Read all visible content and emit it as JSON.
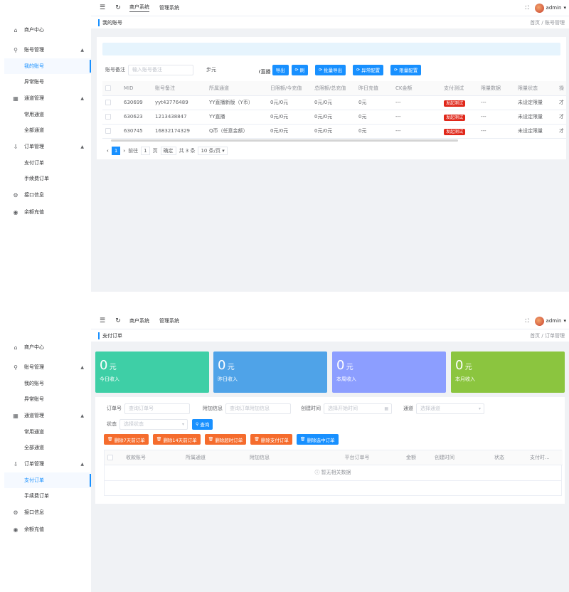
{
  "header": {
    "nav": [
      "商户系统",
      "管理系统"
    ],
    "user": "admin"
  },
  "sidebar": {
    "menu": [
      {
        "label": "商户中心",
        "icon": "home-icon"
      },
      {
        "label": "账号管理",
        "icon": "user-icon",
        "children": [
          "我的账号",
          "异常账号"
        ]
      },
      {
        "label": "通道管理",
        "icon": "grid-icon",
        "children": [
          "常用通道",
          "全部通道"
        ]
      },
      {
        "label": "订单管理",
        "icon": "order-icon",
        "children": [
          "支付订单",
          "手续费订单"
        ]
      },
      {
        "label": "接口信息",
        "icon": "gear-icon"
      },
      {
        "label": "余额充值",
        "icon": "coin-icon"
      }
    ]
  },
  "page1": {
    "crumb_title": "我的账号",
    "crumb_path": "首页 / 账号管理",
    "filter": {
      "remark_label": "账号备注",
      "remark_placeholder": "输入账号备注",
      "channel_value": "步元",
      "channel_value2": "YY直播"
    },
    "buttons": [
      "导出",
      "刷",
      "批量导出",
      "异常配置",
      "限量配置"
    ],
    "table": {
      "columns": [
        "MID",
        "账号备注",
        "所属通道",
        "日限额/今充值",
        "总限额/总充值",
        "昨日充值",
        "CK金额",
        "支付测试",
        "限量数据",
        "限量状态",
        "操"
      ],
      "rows": [
        [
          "630699",
          "yyt43776489",
          "YY直播新版（Y币）",
          "0元/0元",
          "0元/0元",
          "0元",
          "---",
          "发起测试",
          "---",
          "未设定限量",
          "才"
        ],
        [
          "630623",
          "1213438847",
          "YY直播",
          "0元/0元",
          "0元/0元",
          "0元",
          "---",
          "发起测试",
          "---",
          "未设定限量",
          "才"
        ],
        [
          "630745",
          "16832174329",
          "Q币（任意金额）",
          "0元/0元",
          "0元/0元",
          "0元",
          "---",
          "发起测试",
          "---",
          "未设定限量",
          "才"
        ]
      ]
    },
    "pager": {
      "current": "1",
      "goto_label": "前往",
      "page_input": "1",
      "page_unit": "页",
      "confirm": "确定",
      "total": "共 3 条",
      "page_size": "10 条/页"
    }
  },
  "page2": {
    "crumb_title": "支付订单",
    "crumb_path": "首页 / 订单管理",
    "stats": [
      {
        "value": "0",
        "unit": "元",
        "label": "今日收入",
        "color": "#3ecfa6"
      },
      {
        "value": "0",
        "unit": "元",
        "label": "昨日收入",
        "color": "#4fa3e8"
      },
      {
        "value": "0",
        "unit": "元",
        "label": "本周收入",
        "color": "#8c9eff"
      },
      {
        "value": "0",
        "unit": "元",
        "label": "本月收入",
        "color": "#8bc53f"
      }
    ],
    "filters": {
      "order_label": "订单号",
      "order_placeholder": "查询订单号",
      "attach_label": "附加信息",
      "attach_placeholder": "查询订单附加信息",
      "time_label": "创建时间",
      "time_placeholder": "选择开始时间",
      "channel_label": "通道",
      "channel_placeholder": "选择通道",
      "status_label": "状态",
      "status_placeholder": "选择状态",
      "query_button": "查询"
    },
    "actions": [
      "删除7天前订单",
      "删除14天前订单",
      "删除超时订单",
      "删除支付订单",
      "删除选中订单"
    ],
    "table": {
      "columns": [
        "收款账号",
        "所属通道",
        "附加信息",
        "平台订单号",
        "金额",
        "创建时间",
        "状态",
        "支付时..."
      ],
      "empty": "暂无相关数据"
    }
  }
}
